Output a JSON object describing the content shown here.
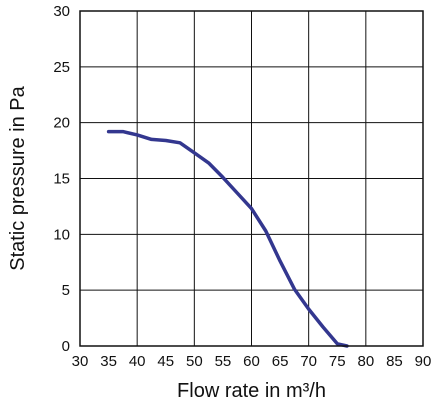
{
  "chart_data": {
    "type": "line",
    "title": "",
    "xlabel": "Flow rate in m³/h",
    "ylabel": "Static pressure in Pa",
    "xlim": [
      30,
      90
    ],
    "ylim": [
      0,
      30
    ],
    "x_ticks": [
      30,
      35,
      40,
      45,
      50,
      55,
      60,
      65,
      70,
      75,
      80,
      85,
      90
    ],
    "y_ticks": [
      0,
      5,
      10,
      15,
      20,
      25,
      30
    ],
    "grid": true,
    "grid_x_major": [
      30,
      40,
      50,
      60,
      70,
      80,
      90
    ],
    "grid_y_major": [
      0,
      5,
      10,
      15,
      20,
      25,
      30
    ],
    "series": [
      {
        "color": "#33378f",
        "points": [
          [
            35,
            19.2
          ],
          [
            37.5,
            19.2
          ],
          [
            40,
            18.9
          ],
          [
            42.5,
            18.5
          ],
          [
            45,
            18.4
          ],
          [
            47.5,
            18.2
          ],
          [
            50,
            17.3
          ],
          [
            52.5,
            16.4
          ],
          [
            55,
            15.1
          ],
          [
            57.5,
            13.7
          ],
          [
            60,
            12.3
          ],
          [
            62.5,
            10.3
          ],
          [
            65,
            7.6
          ],
          [
            67.5,
            5.1
          ],
          [
            70,
            3.3
          ],
          [
            72.5,
            1.7
          ],
          [
            75,
            0.2
          ],
          [
            76.7,
            0
          ]
        ]
      }
    ]
  }
}
